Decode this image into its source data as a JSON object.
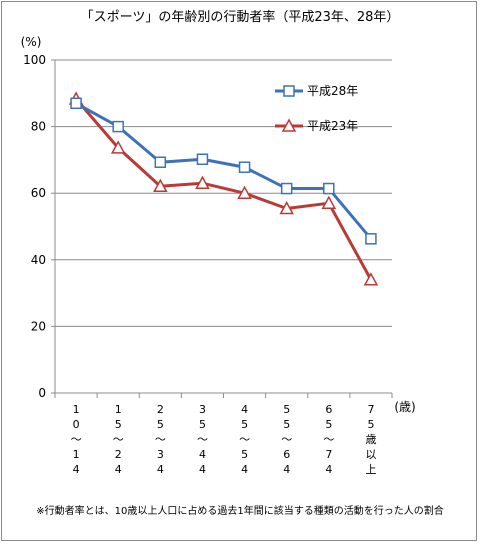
{
  "chart_data": {
    "type": "line",
    "title": "「スポーツ」の年齢別の行動者率（平成23年、28年）",
    "ylabel": "(%)",
    "xunit": "(歳)",
    "ylim": [
      0,
      100
    ],
    "yticks": [
      0,
      20,
      40,
      60,
      80,
      100
    ],
    "grid": true,
    "legend_position": "top-right",
    "categories": [
      "10〜14",
      "15〜24",
      "25〜34",
      "35〜44",
      "45〜54",
      "55〜64",
      "65〜74",
      "75歳以上"
    ],
    "category_labels_vertical": [
      [
        "1",
        "0",
        "〜",
        "1",
        "4"
      ],
      [
        "1",
        "5",
        "〜",
        "2",
        "4"
      ],
      [
        "2",
        "5",
        "〜",
        "3",
        "4"
      ],
      [
        "3",
        "5",
        "〜",
        "4",
        "4"
      ],
      [
        "4",
        "5",
        "〜",
        "5",
        "4"
      ],
      [
        "5",
        "5",
        "〜",
        "6",
        "4"
      ],
      [
        "6",
        "5",
        "〜",
        "7",
        "4"
      ],
      [
        "7",
        "5",
        "歳",
        "以",
        "上"
      ]
    ],
    "series": [
      {
        "name": "平成28年",
        "values": [
          87.0,
          80.0,
          69.3,
          70.2,
          67.8,
          61.4,
          61.4,
          46.3
        ],
        "color": "#3d72b8",
        "marker": "square"
      },
      {
        "name": "平成23年",
        "values": [
          88.3,
          73.6,
          62.1,
          63.0,
          60.0,
          55.4,
          57.0,
          34.0
        ],
        "color": "#bb3a35",
        "marker": "triangle"
      }
    ],
    "footnote": "※行動者率とは、10歳以上人口に占める過去1年間に該当する種類の活動を行った人の割合"
  }
}
